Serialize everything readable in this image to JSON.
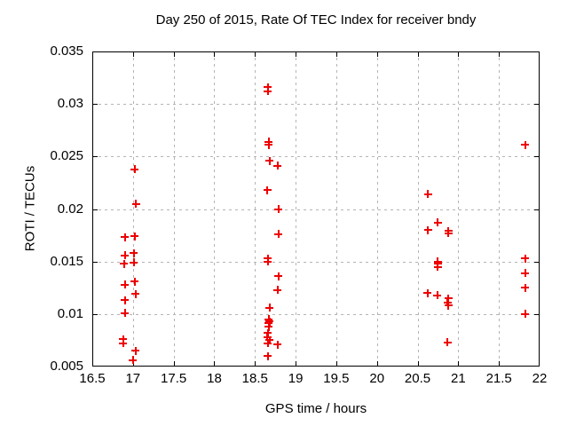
{
  "chart_data": {
    "type": "scatter",
    "title": "Day 250 of 2015, Rate Of TEC Index for receiver bndy",
    "xlabel": "GPS time / hours",
    "ylabel": "ROTI / TECUs",
    "xlim": [
      16.5,
      22
    ],
    "ylim": [
      0.005,
      0.035
    ],
    "grid": true,
    "legend": "none",
    "marker": "plus",
    "marker_color": "#ee0000",
    "grid_color": "#b4b4b4",
    "axis_color": "#000000",
    "x_ticks": [
      {
        "v": 16.5,
        "label": "16.5"
      },
      {
        "v": 17,
        "label": "17"
      },
      {
        "v": 17.5,
        "label": "17.5"
      },
      {
        "v": 18,
        "label": "18"
      },
      {
        "v": 18.5,
        "label": "18.5"
      },
      {
        "v": 19,
        "label": "19"
      },
      {
        "v": 19.5,
        "label": "19.5"
      },
      {
        "v": 20,
        "label": "20"
      },
      {
        "v": 20.5,
        "label": "20.5"
      },
      {
        "v": 21,
        "label": "21"
      },
      {
        "v": 21.5,
        "label": "21.5"
      },
      {
        "v": 22,
        "label": "22"
      }
    ],
    "y_ticks": [
      {
        "v": 0.005,
        "label": "0.005"
      },
      {
        "v": 0.01,
        "label": "0.01"
      },
      {
        "v": 0.015,
        "label": "0.015"
      },
      {
        "v": 0.02,
        "label": "0.02"
      },
      {
        "v": 0.025,
        "label": "0.025"
      },
      {
        "v": 0.03,
        "label": "0.03"
      },
      {
        "v": 0.035,
        "label": "0.035"
      }
    ],
    "points": [
      [
        16.9,
        0.0173
      ],
      [
        16.9,
        0.0156
      ],
      [
        16.89,
        0.0148
      ],
      [
        16.9,
        0.0128
      ],
      [
        16.9,
        0.0113
      ],
      [
        16.9,
        0.0101
      ],
      [
        16.88,
        0.0076
      ],
      [
        16.88,
        0.0072
      ],
      [
        17.02,
        0.0238
      ],
      [
        17.04,
        0.0205
      ],
      [
        17.02,
        0.0174
      ],
      [
        17.01,
        0.0158
      ],
      [
        17.01,
        0.0149
      ],
      [
        17.02,
        0.0131
      ],
      [
        17.03,
        0.0119
      ],
      [
        17.03,
        0.0065
      ],
      [
        17.0,
        0.0056
      ],
      [
        18.66,
        0.0316
      ],
      [
        18.66,
        0.0312
      ],
      [
        18.67,
        0.0264
      ],
      [
        18.67,
        0.0261
      ],
      [
        18.68,
        0.0246
      ],
      [
        18.65,
        0.0218
      ],
      [
        18.66,
        0.0153
      ],
      [
        18.66,
        0.015
      ],
      [
        18.68,
        0.0106
      ],
      [
        18.67,
        0.0095
      ],
      [
        18.68,
        0.0093
      ],
      [
        18.67,
        0.0091
      ],
      [
        18.67,
        0.0088
      ],
      [
        18.66,
        0.0082
      ],
      [
        18.65,
        0.0078
      ],
      [
        18.68,
        0.0075
      ],
      [
        18.66,
        0.0072
      ],
      [
        18.66,
        0.006
      ],
      [
        18.78,
        0.0241
      ],
      [
        18.79,
        0.02
      ],
      [
        18.79,
        0.0176
      ],
      [
        18.79,
        0.0136
      ],
      [
        18.78,
        0.0123
      ],
      [
        18.78,
        0.0071
      ],
      [
        20.63,
        0.0214
      ],
      [
        20.75,
        0.0187
      ],
      [
        20.63,
        0.018
      ],
      [
        20.88,
        0.0179
      ],
      [
        20.88,
        0.0177
      ],
      [
        20.75,
        0.015
      ],
      [
        20.75,
        0.0148
      ],
      [
        20.75,
        0.0145
      ],
      [
        20.62,
        0.012
      ],
      [
        20.74,
        0.0118
      ],
      [
        20.88,
        0.0115
      ],
      [
        20.87,
        0.0111
      ],
      [
        20.88,
        0.0108
      ],
      [
        20.87,
        0.0073
      ],
      [
        21.82,
        0.0261
      ],
      [
        21.82,
        0.0153
      ],
      [
        21.82,
        0.0139
      ],
      [
        21.82,
        0.0125
      ],
      [
        21.82,
        0.01
      ]
    ]
  }
}
